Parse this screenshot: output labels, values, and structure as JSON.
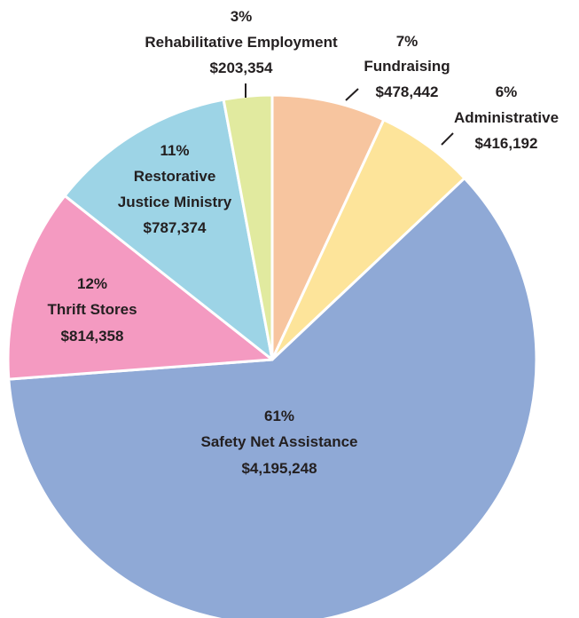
{
  "chart_data": {
    "type": "pie",
    "slices": [
      {
        "label": "Fundraising",
        "percent_label": "7%",
        "value": 478442,
        "value_label": "$478,442",
        "color": "#f7c59f"
      },
      {
        "label": "Administrative",
        "percent_label": "6%",
        "value": 416192,
        "value_label": "$416,192",
        "color": "#fde49a"
      },
      {
        "label": "Safety Net Assistance",
        "percent_label": "61%",
        "value": 4195248,
        "value_label": "$4,195,248",
        "color": "#8fa9d6"
      },
      {
        "label": "Thrift Stores",
        "percent_label": "12%",
        "value": 814358,
        "value_label": "$814,358",
        "color": "#f49ac1"
      },
      {
        "label_lines": [
          "Restorative",
          "Justice Ministry"
        ],
        "label": "Restorative Justice Ministry",
        "percent_label": "11%",
        "value": 787374,
        "value_label": "$787,374",
        "color": "#9dd4e6"
      },
      {
        "label": "Rehabilitative Employment",
        "percent_label": "3%",
        "value": 203354,
        "value_label": "$203,354",
        "color": "#e1ea9f"
      }
    ]
  }
}
